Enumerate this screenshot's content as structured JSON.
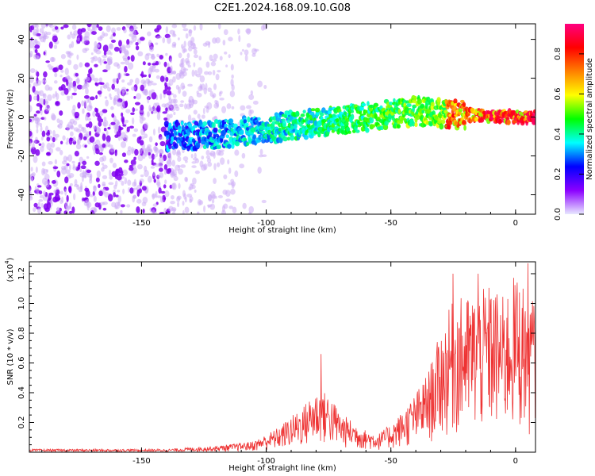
{
  "page_title": "C2E1.2024.168.09.10.G08",
  "chart_data": [
    {
      "type": "heatmap",
      "xlabel": "Height of straight line (km)",
      "ylabel": "Frequency (Hz)",
      "xlim": [
        -195,
        8
      ],
      "ylim": [
        -50,
        48
      ],
      "x_ticks": [
        -150,
        -100,
        -50,
        0
      ],
      "y_ticks": [
        -40,
        -20,
        0,
        20,
        40
      ],
      "colorbar": {
        "label": "Normalized spectral amplitude",
        "range": [
          0,
          0.95
        ],
        "ticks": [
          0.0,
          0.2,
          0.4,
          0.6,
          0.8
        ],
        "colormap": [
          "#e8e8ff",
          "#8b00ff",
          "#0000ff",
          "#00ffff",
          "#00ff00",
          "#ffff00",
          "#ff8000",
          "#ff0000",
          "#ff0080"
        ]
      },
      "ridge": {
        "x": [
          -140,
          -120,
          -100,
          -80,
          -60,
          -40,
          -20,
          0,
          8
        ],
        "freq": [
          -10,
          -9,
          -6,
          -3,
          0,
          3,
          1,
          0,
          0
        ]
      },
      "noise_region_x": [
        -195,
        -110
      ],
      "grid": false
    },
    {
      "type": "line",
      "xlabel": "Height of straight line (km)",
      "ylabel": "SNR (10 * v/v)",
      "y_scale_label": "(x10",
      "y_scale_exp": "4",
      "xlim": [
        -195,
        8
      ],
      "ylim": [
        0,
        1.28
      ],
      "x_ticks": [
        -150,
        -100,
        -50,
        0
      ],
      "y_ticks": [
        0.2,
        0.4,
        0.6,
        0.8,
        1.0,
        1.2
      ],
      "color": "#ee3333",
      "envelope": {
        "x": [
          -195,
          -140,
          -120,
          -105,
          -95,
          -85,
          -80,
          -75,
          -70,
          -60,
          -55,
          -50,
          -45,
          -40,
          -35,
          -30,
          -25,
          -20,
          -15,
          -10,
          -5,
          0,
          5,
          8
        ],
        "y": [
          0.02,
          0.02,
          0.04,
          0.07,
          0.16,
          0.3,
          0.4,
          0.38,
          0.25,
          0.14,
          0.12,
          0.18,
          0.27,
          0.38,
          0.52,
          0.78,
          0.98,
          1.0,
          1.02,
          1.08,
          1.0,
          1.15,
          1.05,
          1.0
        ]
      },
      "peaks": [
        {
          "x": -78,
          "y": 0.66
        },
        {
          "x": -25,
          "y": 1.2
        },
        {
          "x": -15,
          "y": 1.2
        },
        {
          "x": 5,
          "y": 1.27
        }
      ],
      "grid": false
    }
  ]
}
